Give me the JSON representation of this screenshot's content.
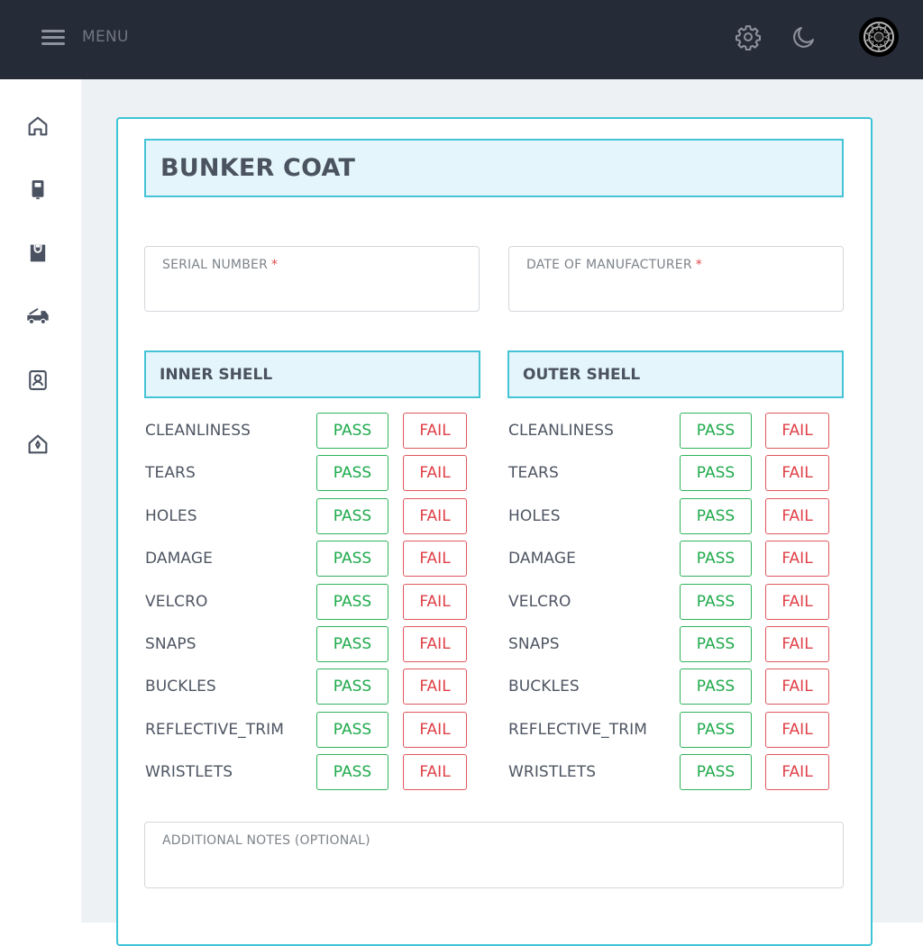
{
  "topbar": {
    "menu_label": "MENU",
    "icons": [
      "hamburger-icon",
      "gear-icon",
      "moon-icon",
      "avatar"
    ]
  },
  "sidebar": {
    "items": [
      "home-icon",
      "locker-icon",
      "bag-icon",
      "fire-truck-icon",
      "badge-icon",
      "station-icon"
    ]
  },
  "form": {
    "title": "BUNKER COAT",
    "serial_label": "SERIAL NUMBER",
    "serial_value": "",
    "dom_label": "DATE OF MANUFACTURER",
    "dom_value": "",
    "required_mark": "*",
    "inner_title": "INNER SHELL",
    "outer_title": "OUTER SHELL",
    "inner_rows": [
      "CLEANLINESS",
      "TEARS",
      "HOLES",
      "DAMAGE",
      "VELCRO",
      "SNAPS",
      "BUCKLES",
      "REFLECTIVE_TRIM",
      "WRISTLETS"
    ],
    "outer_rows": [
      "CLEANLINESS",
      "TEARS",
      "HOLES",
      "DAMAGE",
      "VELCRO",
      "SNAPS",
      "BUCKLES",
      "REFLECTIVE_TRIM",
      "WRISTLETS"
    ],
    "pass_label": "PASS",
    "fail_label": "FAIL",
    "notes_label": "ADDITIONAL NOTES (OPTIONAL)",
    "notes_value": ""
  },
  "colors": {
    "topbar": "#262b38",
    "accent": "#45c4d6",
    "pass": "#1faa4c",
    "fail": "#df4047"
  }
}
